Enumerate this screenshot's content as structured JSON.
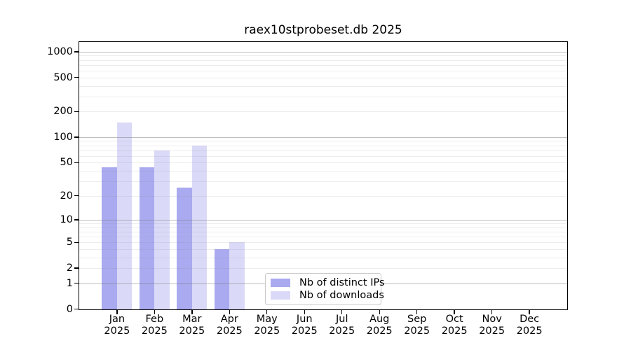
{
  "title": "raex10stprobeset.db 2025",
  "chart_data": {
    "type": "bar",
    "title": "raex10stprobeset.db 2025",
    "x_categories": [
      "Jan",
      "Feb",
      "Mar",
      "Apr",
      "May",
      "Jun",
      "Jul",
      "Aug",
      "Sep",
      "Oct",
      "Nov",
      "Dec"
    ],
    "x_year": "2025",
    "series": [
      {
        "name": "Nb of distinct IPs",
        "color": "#aaaaf0",
        "values": [
          44,
          44,
          25,
          4,
          0,
          0,
          0,
          0,
          0,
          0,
          0,
          0
        ]
      },
      {
        "name": "Nb of downloads",
        "color": "#dadaf8",
        "values": [
          150,
          70,
          80,
          5,
          0,
          0,
          0,
          0,
          0,
          0,
          0,
          0
        ]
      }
    ],
    "yscale": "log1p",
    "yticks": [
      0,
      1,
      2,
      5,
      10,
      20,
      50,
      100,
      200,
      500,
      1000
    ],
    "ylim": [
      0,
      1280
    ],
    "grid": "horizontal major and minor gridlines, drawn over bars",
    "legend_position": "inside plot, lower center"
  },
  "colors": {
    "axis": "#000000",
    "major_grid": "rgba(110,110,110,0.45)",
    "minor_grid": "rgba(130,130,130,0.14)",
    "background": "#ffffff"
  }
}
